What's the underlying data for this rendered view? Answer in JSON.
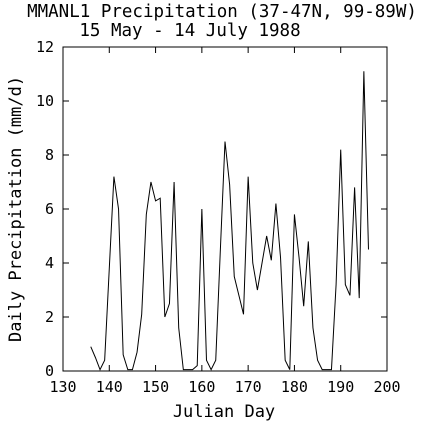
{
  "chart_data": {
    "type": "line",
    "title": "MMANL1 Precipitation (37-47N, 99-89W)",
    "subtitle": "15 May - 14 July 1988",
    "xlabel": "Julian Day",
    "ylabel": "Daily Precipitation (mm/d)",
    "xlim": [
      130,
      200
    ],
    "ylim": [
      0,
      12
    ],
    "xticks": [
      130,
      140,
      150,
      160,
      170,
      180,
      190,
      200
    ],
    "yticks": [
      0,
      2,
      4,
      6,
      8,
      10,
      12
    ],
    "grid": false,
    "series": [
      {
        "x": [
          136,
          137,
          138,
          139,
          140,
          141,
          142,
          143,
          144,
          145,
          146,
          147,
          148,
          149,
          150,
          151,
          152,
          153,
          154,
          155,
          156,
          157,
          158,
          159,
          160,
          161,
          162,
          163,
          164,
          165,
          166,
          167,
          168,
          169,
          170,
          171,
          172,
          173,
          174,
          175,
          176,
          177,
          178,
          179,
          180,
          181,
          182,
          183,
          184,
          185,
          186,
          187,
          188,
          189,
          190,
          191,
          192,
          193,
          194,
          195,
          196
        ],
        "values": [
          0.9,
          0.5,
          0.05,
          0.4,
          3.8,
          7.2,
          6.0,
          0.6,
          0.05,
          0.05,
          0.7,
          2.1,
          5.8,
          7.0,
          6.3,
          6.4,
          2.0,
          2.5,
          7.0,
          1.6,
          0.05,
          0.05,
          0.05,
          0.2,
          6.0,
          0.4,
          0.05,
          0.4,
          4.5,
          8.5,
          6.9,
          3.5,
          2.8,
          2.1,
          7.2,
          4.0,
          3.0,
          4.0,
          5.0,
          4.1,
          6.2,
          4.2,
          0.4,
          0.05,
          5.8,
          4.2,
          2.4,
          4.8,
          1.6,
          0.4,
          0.05,
          0.05,
          0.05,
          3.2,
          8.2,
          3.2,
          2.8,
          6.8,
          2.7,
          11.1,
          4.5
        ]
      }
    ]
  }
}
